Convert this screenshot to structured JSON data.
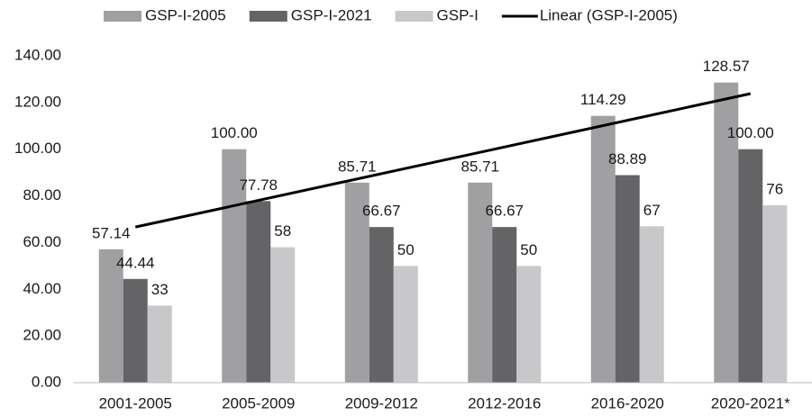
{
  "chart_data": {
    "type": "bar",
    "categories": [
      "2001-2005",
      "2005-2009",
      "2009-2012",
      "2012-2016",
      "2016-2020",
      "2020-2021*"
    ],
    "series": [
      {
        "name": "GSP-I-2005",
        "color": "#a0a0a2",
        "values": [
          57.14,
          100,
          85.71,
          85.71,
          114.29,
          128.57
        ],
        "value_labels": [
          "57.14",
          "100.00",
          "85.71",
          "85.71",
          "114.29",
          "128.57"
        ]
      },
      {
        "name": "GSP-I-2021",
        "color": "#646467",
        "values": [
          44.44,
          77.78,
          66.67,
          66.67,
          88.89,
          100
        ],
        "value_labels": [
          "44.44",
          "77.78",
          "66.67",
          "66.67",
          "88.89",
          "100.00"
        ]
      },
      {
        "name": "GSP-I",
        "color": "#c8c8ca",
        "values": [
          33,
          58,
          50,
          50,
          67,
          76
        ]
      }
    ],
    "trendline": {
      "name": "Linear (GSP-I-2005)",
      "type": "linear",
      "series": 0,
      "color": "#000000"
    },
    "ylim": [
      0,
      140
    ],
    "yticks": [
      {
        "value": 0,
        "label": "0.00"
      },
      {
        "value": 20,
        "label": "20.00"
      },
      {
        "value": 40,
        "label": "40.00"
      },
      {
        "value": 60,
        "label": "60.00"
      },
      {
        "value": 80,
        "label": "80.00"
      },
      {
        "value": 100,
        "label": "100.00"
      },
      {
        "value": 120,
        "label": "120.00"
      },
      {
        "value": 140,
        "label": "140.00"
      }
    ],
    "grid": false,
    "legend": "top"
  }
}
